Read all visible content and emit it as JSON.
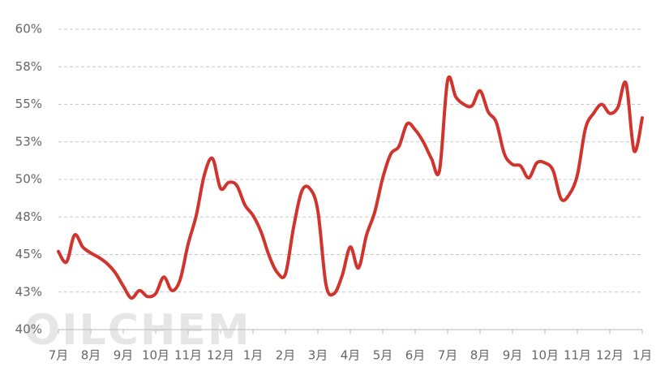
{
  "chart_data": {
    "type": "line",
    "watermark": "OILCHEM",
    "categories": [
      "7月",
      null,
      null,
      null,
      "8月",
      null,
      null,
      null,
      "9月",
      null,
      null,
      null,
      "10月",
      null,
      null,
      null,
      "11月",
      null,
      null,
      null,
      "12月",
      null,
      null,
      null,
      "1月",
      null,
      null,
      null,
      "2月",
      null,
      null,
      null,
      "3月",
      null,
      null,
      null,
      "4月",
      null,
      null,
      null,
      "5月",
      null,
      null,
      null,
      "6月",
      null,
      null,
      null,
      "7月",
      null,
      null,
      null,
      "8月",
      null,
      null,
      null,
      "9月",
      null,
      null,
      null,
      "10月",
      null,
      null,
      null,
      "11月",
      null,
      null,
      null,
      "12月",
      null,
      null,
      null,
      "1月"
    ],
    "series": [
      {
        "color": "#d0342c",
        "values": [
          45.2,
          44.5,
          46.3,
          45.5,
          45.1,
          44.8,
          44.4,
          43.8,
          42.9,
          42.1,
          42.6,
          42.2,
          42.4,
          43.5,
          42.6,
          43.3,
          45.7,
          47.6,
          50.3,
          51.4,
          49.4,
          49.8,
          49.6,
          48.3,
          47.6,
          46.5,
          44.9,
          43.8,
          43.7,
          46.8,
          49.2,
          49.4,
          47.9,
          43.0,
          42.4,
          43.6,
          45.5,
          44.1,
          46.3,
          47.8,
          50.1,
          51.7,
          52.2,
          53.7,
          53.3,
          52.5,
          51.4,
          50.6,
          56.6,
          55.5,
          55.0,
          54.9,
          55.9,
          54.5,
          53.8,
          51.7,
          51.0,
          50.9,
          50.1,
          51.1,
          51.1,
          50.6,
          48.7,
          49.0,
          50.3,
          53.4,
          54.4,
          55.0,
          54.4,
          54.8,
          56.4,
          51.9,
          54.1
        ]
      }
    ],
    "ylim": [
      40,
      60
    ],
    "yticks": [
      {
        "value": 40,
        "label": "40%"
      },
      {
        "value": 42.5,
        "label": "43%"
      },
      {
        "value": 45,
        "label": "45%"
      },
      {
        "value": 47.5,
        "label": "48%"
      },
      {
        "value": 50,
        "label": "50%"
      },
      {
        "value": 52.5,
        "label": "53%"
      },
      {
        "value": 55,
        "label": "55%"
      },
      {
        "value": 57.5,
        "label": "58%"
      },
      {
        "value": 60,
        "label": "60%"
      }
    ],
    "grid": true
  }
}
